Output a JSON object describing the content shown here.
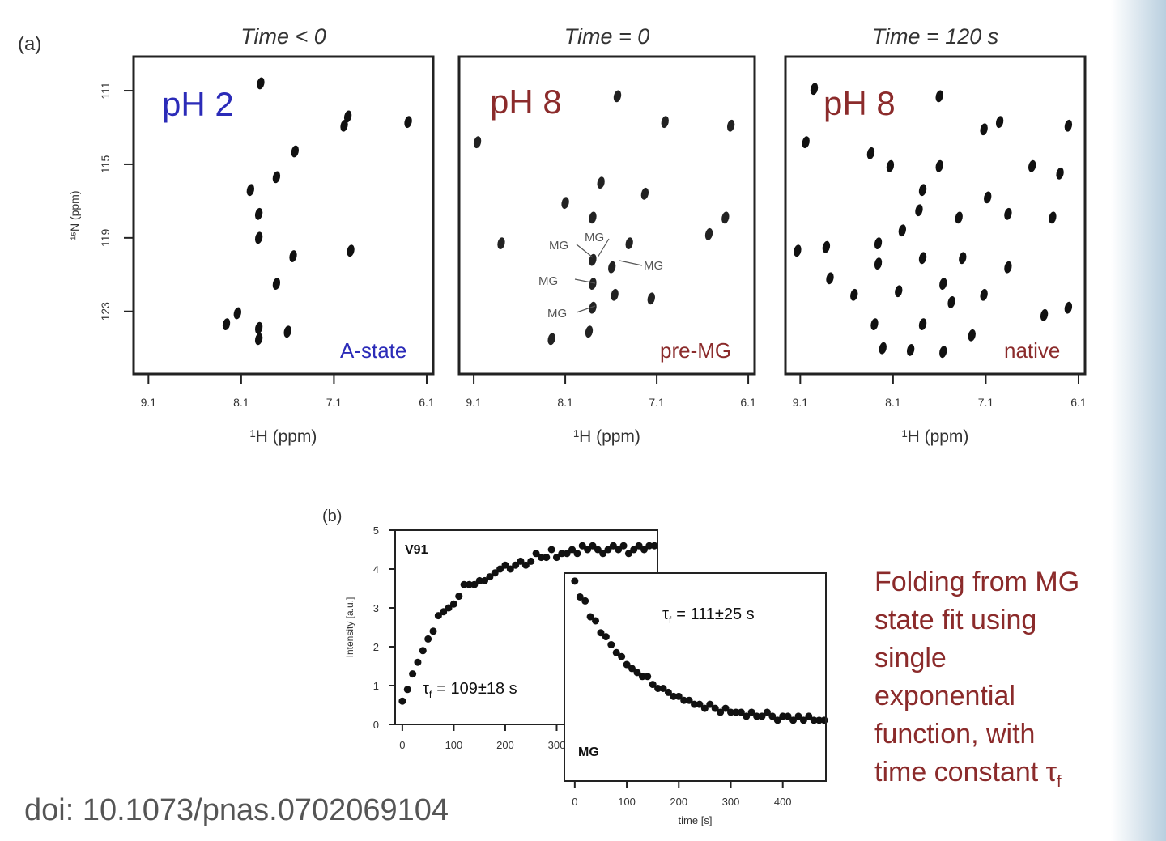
{
  "panel_labels": [
    "(a)",
    "(b)"
  ],
  "chart_data": [
    {
      "type": "scatter",
      "title": "Time < 0",
      "xlabel": "¹H (ppm)",
      "ylabel": "¹⁵N (ppm)",
      "xlim": [
        9.26,
        6.03
      ],
      "ylim": [
        126.4,
        109.15
      ],
      "xticks": [
        9.1,
        8.1,
        7.1,
        6.1
      ],
      "yticks": [
        111,
        115,
        119,
        123
      ],
      "annotations": [
        {
          "text": "pH 2",
          "color": "#2b2bb8"
        },
        {
          "text": "A-state",
          "color": "#2b2bb8"
        }
      ],
      "series": [
        {
          "color": "#111111",
          "x": [
            7.89,
            6.95,
            6.99,
            6.3,
            7.52,
            7.72,
            8.0,
            7.91,
            7.91,
            7.54,
            6.92,
            7.72,
            8.14,
            8.26,
            7.91,
            7.91,
            7.6
          ],
          "values": [
            110.6,
            112.4,
            112.9,
            112.7,
            114.3,
            115.7,
            116.4,
            117.7,
            119.0,
            120.0,
            119.7,
            121.5,
            123.1,
            123.7,
            123.9,
            124.5,
            124.1
          ]
        }
      ]
    },
    {
      "type": "scatter",
      "title": "Time = 0",
      "xlabel": "¹H (ppm)",
      "xlim": [
        9.26,
        6.03
      ],
      "ylim": [
        126.4,
        109.15
      ],
      "xticks": [
        9.1,
        8.1,
        7.1,
        6.1
      ],
      "annotations": [
        {
          "text": "pH 8",
          "color": "#8b2b2b"
        },
        {
          "text": "pre-MG",
          "color": "#8b2b2b"
        },
        {
          "text": "MG",
          "color": "#555555"
        },
        {
          "text": "MG",
          "color": "#555555"
        },
        {
          "text": "MG",
          "color": "#555555"
        },
        {
          "text": "MG",
          "color": "#555555"
        },
        {
          "text": "MG",
          "color": "#555555"
        }
      ],
      "series": [
        {
          "color": "#222222",
          "x": [
            7.01,
            6.29,
            7.53,
            9.06,
            7.8,
            7.8,
            7.59,
            7.8,
            7.56,
            7.8,
            7.84,
            8.25,
            7.4,
            7.16,
            8.8,
            6.53,
            7.71,
            7.23,
            6.35,
            8.1
          ],
          "values": [
            112.7,
            112.9,
            111.3,
            113.8,
            117.9,
            120.2,
            120.6,
            121.5,
            122.1,
            122.8,
            124.1,
            124.5,
            119.3,
            122.3,
            119.3,
            118.8,
            116.0,
            116.6,
            117.9,
            117.1
          ]
        }
      ]
    },
    {
      "type": "scatter",
      "title": "Time = 120 s",
      "xlabel": "¹H (ppm)",
      "xlim": [
        9.26,
        6.03
      ],
      "ylim": [
        126.4,
        109.15
      ],
      "xticks": [
        9.1,
        8.1,
        7.1,
        6.1
      ],
      "annotations": [
        {
          "text": "pH 8",
          "color": "#8b2b2b"
        },
        {
          "text": "native",
          "color": "#8b2b2b"
        }
      ],
      "series": [
        {
          "color": "#111111",
          "x": [
            7.12,
            6.95,
            6.21,
            8.95,
            7.6,
            9.04,
            8.34,
            8.13,
            7.6,
            6.6,
            6.3,
            7.08,
            7.78,
            8.0,
            7.82,
            8.26,
            8.82,
            9.13,
            7.39,
            6.86,
            6.38,
            8.26,
            7.78,
            7.35,
            6.86,
            8.78,
            7.56,
            7.12,
            8.04,
            7.47,
            8.3,
            7.78,
            6.47,
            8.21,
            7.91,
            7.56,
            8.52,
            6.21,
            7.25
          ],
          "values": [
            113.1,
            112.7,
            112.9,
            110.9,
            111.3,
            113.8,
            114.4,
            115.1,
            115.1,
            115.1,
            115.5,
            116.8,
            116.4,
            118.6,
            117.5,
            119.3,
            119.5,
            119.7,
            117.9,
            117.7,
            117.9,
            120.4,
            120.1,
            120.1,
            120.6,
            121.2,
            121.5,
            122.1,
            121.9,
            122.5,
            123.7,
            123.7,
            123.2,
            125.0,
            125.1,
            125.2,
            122.1,
            122.8,
            124.3
          ]
        }
      ]
    },
    {
      "type": "scatter",
      "ylabel": "Intensity [a.u.]",
      "xlim": [
        -14,
        496
      ],
      "ylim": [
        0,
        5
      ],
      "xticks": [
        0,
        100,
        200,
        300
      ],
      "yticks": [
        0,
        1,
        2,
        3,
        4,
        5
      ],
      "annotations": [
        {
          "text": "V91",
          "color": "#111111"
        },
        {
          "symbol": "τ",
          "subscript": "f",
          "text": "= 109±18 s",
          "color": "#111111"
        }
      ],
      "series": [
        {
          "color": "#111111",
          "x": [
            0,
            10,
            20,
            30,
            40,
            50,
            60,
            70,
            80,
            90,
            100,
            110,
            120,
            130,
            140,
            150,
            160,
            170,
            180,
            190,
            200,
            210,
            220,
            230,
            240,
            250,
            260,
            270,
            280,
            290,
            300,
            310,
            320,
            330,
            340,
            350,
            360,
            370,
            380,
            390,
            400,
            410,
            420,
            430,
            440,
            450,
            460,
            470,
            480,
            490
          ],
          "values": [
            0.6,
            0.9,
            1.3,
            1.6,
            1.9,
            2.2,
            2.4,
            2.8,
            2.9,
            3.0,
            3.1,
            3.3,
            3.6,
            3.6,
            3.6,
            3.7,
            3.7,
            3.8,
            3.9,
            4.0,
            4.1,
            4.0,
            4.1,
            4.2,
            4.1,
            4.2,
            4.4,
            4.3,
            4.3,
            4.5,
            4.3,
            4.4,
            4.4,
            4.5,
            4.4,
            4.6,
            4.5,
            4.6,
            4.5,
            4.4,
            4.5,
            4.6,
            4.5,
            4.6,
            4.4,
            4.5,
            4.6,
            4.5,
            4.6,
            4.6
          ]
        }
      ]
    },
    {
      "type": "scatter",
      "xlabel": "time [s]",
      "xlim": [
        -20,
        483
      ],
      "ylim": [
        -1.33,
        3.9
      ],
      "xticks": [
        0,
        100,
        200,
        300,
        400
      ],
      "annotations": [
        {
          "text": "MG",
          "color": "#111111"
        },
        {
          "symbol": "τ",
          "subscript": "f",
          "text": "= 111±25 s",
          "color": "#111111"
        }
      ],
      "series": [
        {
          "color": "#111111",
          "x": [
            0,
            10,
            20,
            30,
            40,
            50,
            60,
            70,
            80,
            90,
            100,
            110,
            120,
            130,
            140,
            150,
            160,
            170,
            180,
            190,
            200,
            210,
            220,
            230,
            240,
            250,
            260,
            270,
            280,
            290,
            300,
            310,
            320,
            330,
            340,
            350,
            360,
            370,
            380,
            390,
            400,
            410,
            420,
            430,
            440,
            450,
            460,
            470,
            480
          ],
          "values": [
            3.7,
            3.3,
            3.2,
            2.8,
            2.7,
            2.4,
            2.3,
            2.1,
            1.9,
            1.8,
            1.6,
            1.5,
            1.4,
            1.3,
            1.3,
            1.1,
            1.0,
            1.0,
            0.9,
            0.8,
            0.8,
            0.7,
            0.7,
            0.6,
            0.6,
            0.5,
            0.6,
            0.5,
            0.4,
            0.5,
            0.4,
            0.4,
            0.4,
            0.3,
            0.4,
            0.3,
            0.3,
            0.4,
            0.3,
            0.2,
            0.3,
            0.3,
            0.2,
            0.3,
            0.2,
            0.3,
            0.2,
            0.2,
            0.2
          ]
        }
      ]
    }
  ],
  "caption": {
    "lines": [
      "Folding from MG",
      "state fit using",
      "single",
      "exponential",
      "function, with"
    ],
    "last_line": "time constant τ",
    "last_subscript": "f"
  },
  "doi": "doi: 10.1073/pnas.0702069104"
}
